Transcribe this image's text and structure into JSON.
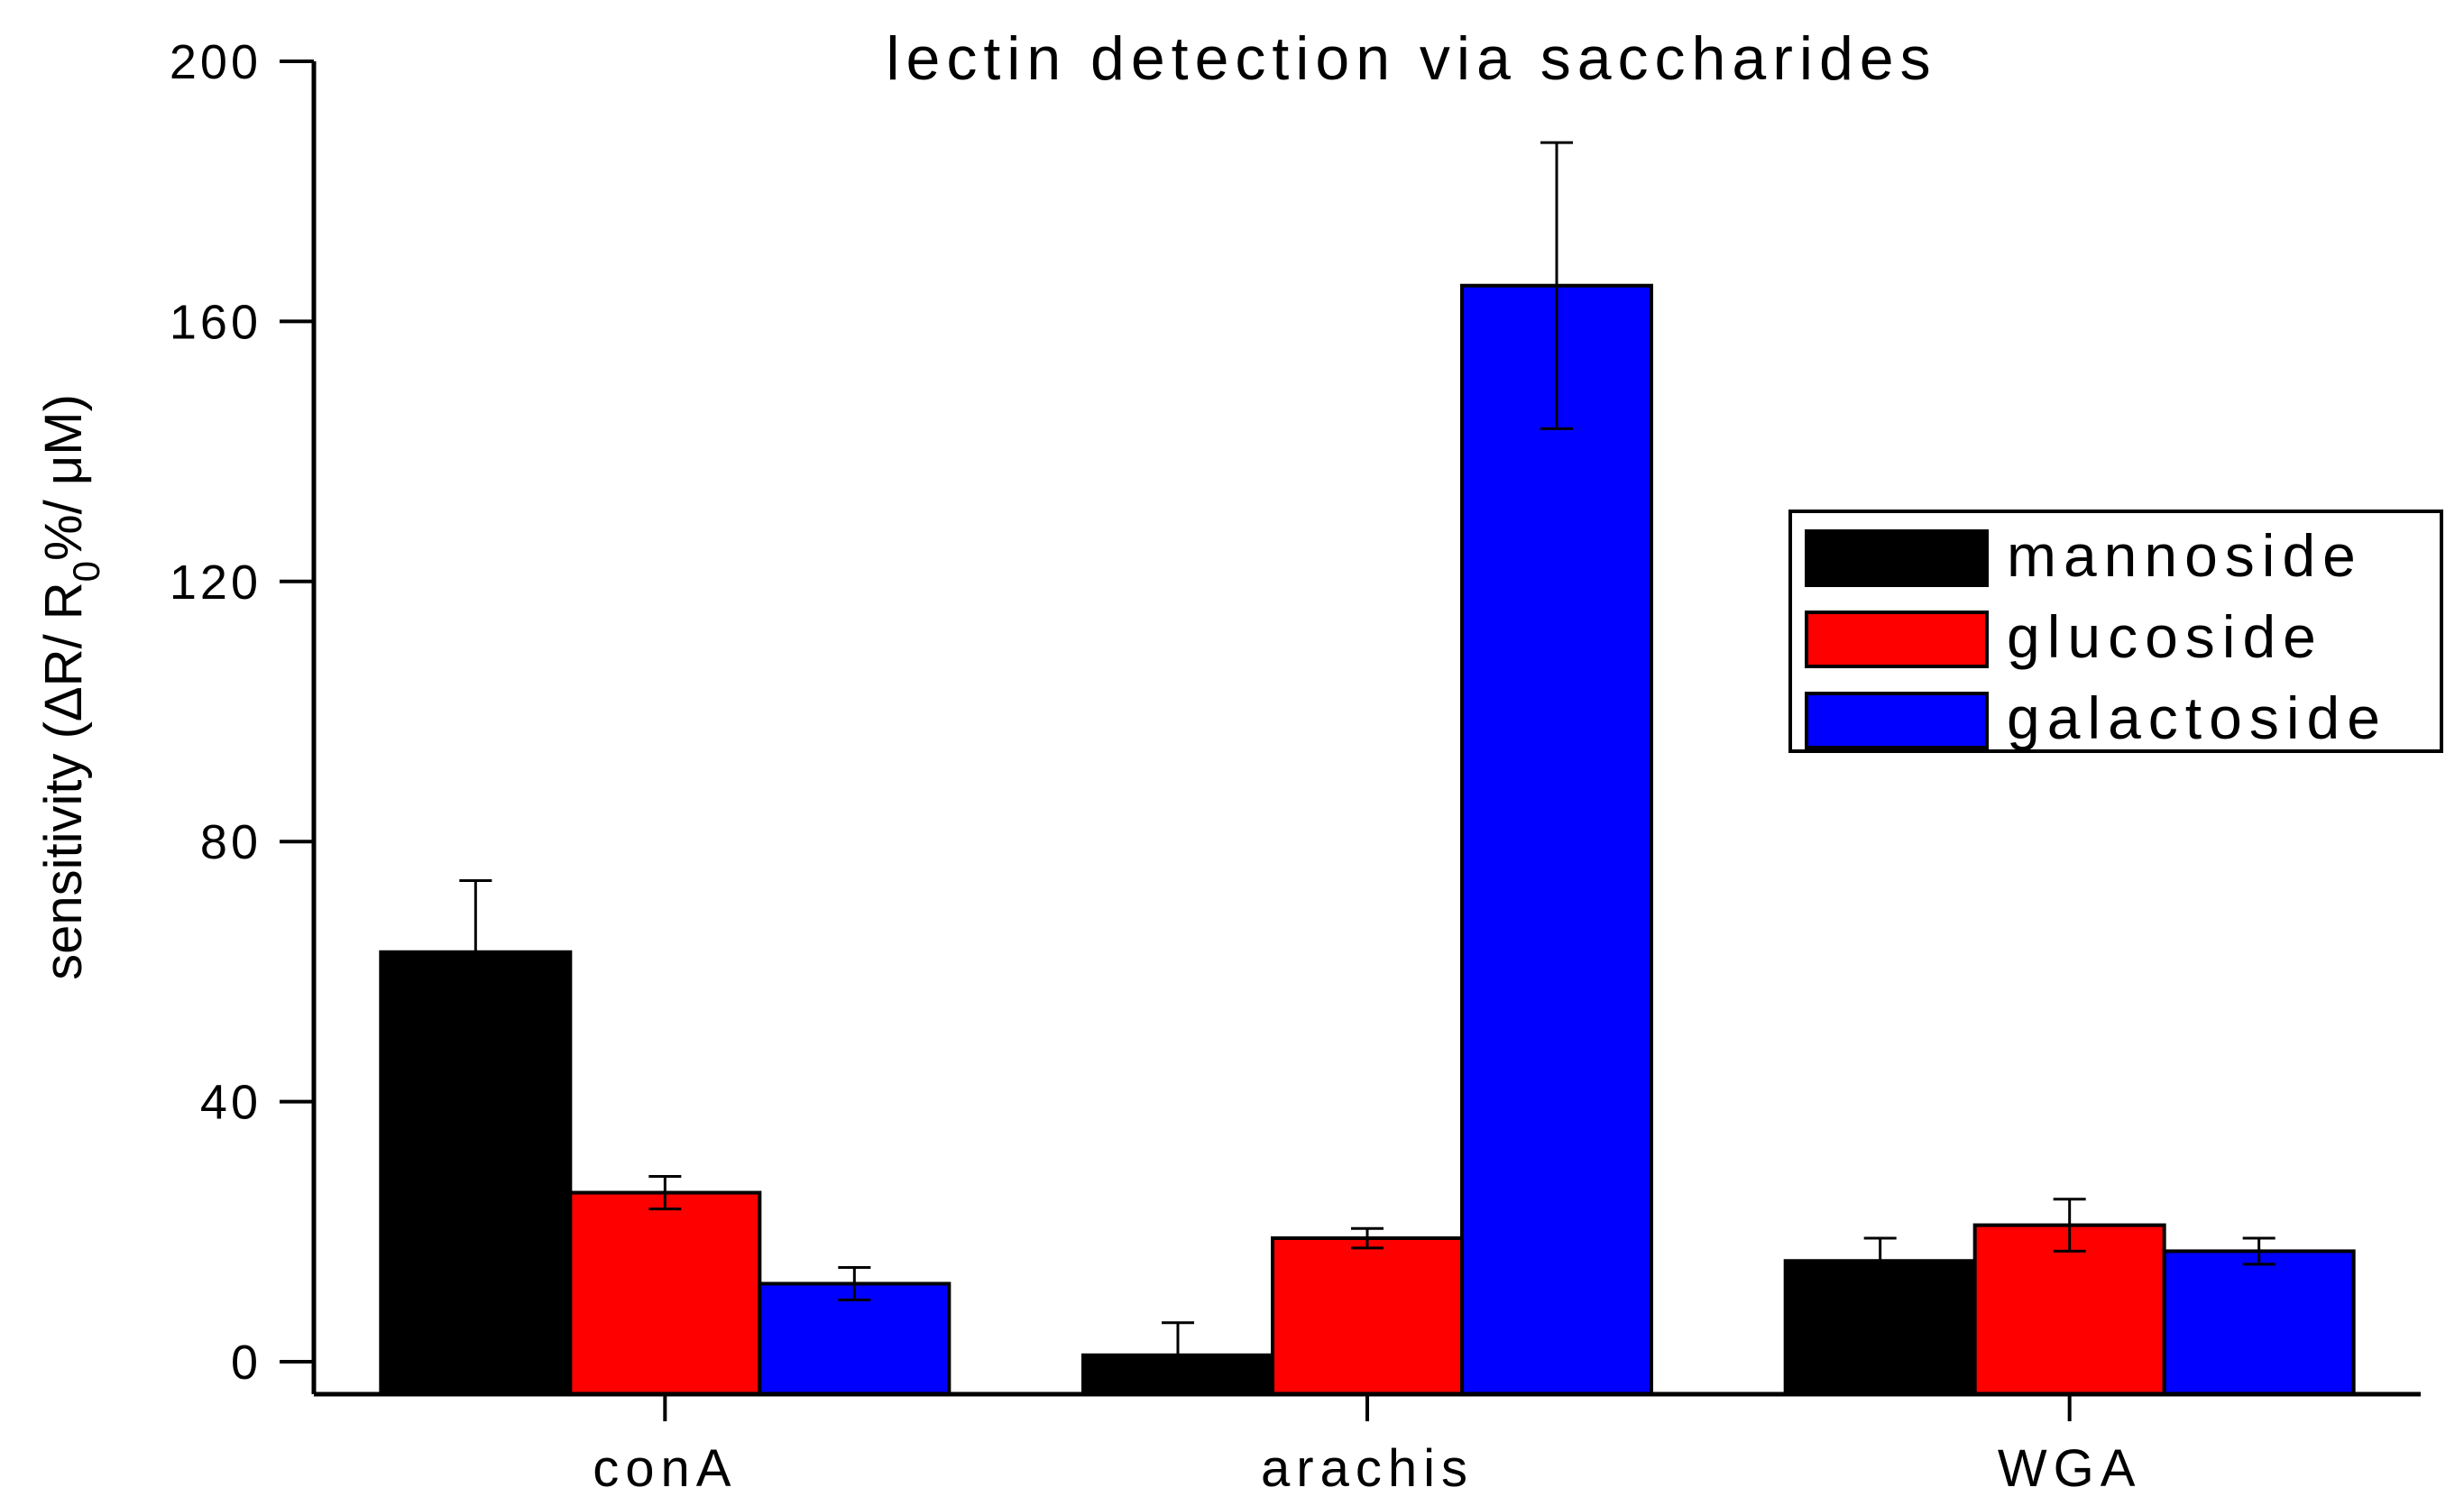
{
  "chart_data": {
    "type": "bar",
    "title": "lectin detection via saccharides",
    "xlabel": "",
    "ylabel": {
      "main": "sensitivity (ΔR/ R",
      "sub": "0",
      "tail": "%/ μM)"
    },
    "categories": [
      "conA",
      "arachis",
      "WGA"
    ],
    "series": [
      {
        "name": "mannoside",
        "color": "#000000",
        "values": [
          63,
          1,
          15.5
        ],
        "errors": [
          11,
          5,
          3.5
        ]
      },
      {
        "name": "glucoside",
        "color": "#ff0000",
        "values": [
          26,
          19,
          21
        ],
        "errors": [
          2.5,
          1.5,
          4
        ]
      },
      {
        "name": "galactoside",
        "color": "#0000ff",
        "values": [
          12,
          165.5,
          17
        ],
        "errors": [
          2.5,
          22,
          2
        ]
      }
    ],
    "ylim": [
      -5,
      200
    ],
    "yticks": [
      0,
      40,
      80,
      120,
      160,
      200
    ],
    "grid": false,
    "legend_position": "right"
  }
}
